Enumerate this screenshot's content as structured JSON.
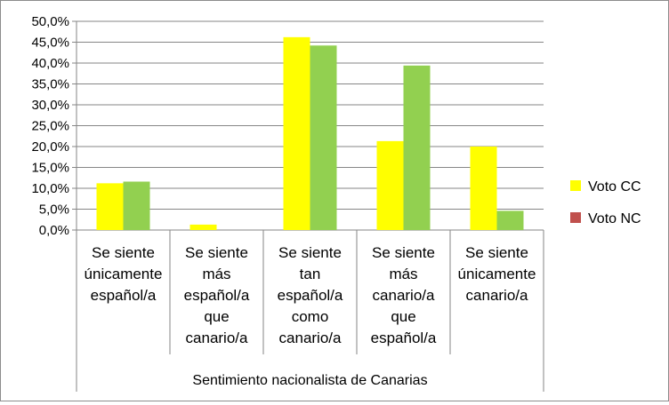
{
  "chart_data": {
    "type": "bar",
    "categories": [
      [
        "Se siente",
        "únicamente",
        "español/a"
      ],
      [
        "Se siente",
        "más",
        "español/a",
        "que",
        "canario/a"
      ],
      [
        "Se siente",
        "tan",
        "español/a",
        "como",
        "canario/a"
      ],
      [
        "Se siente",
        "más",
        "canario/a",
        "que",
        "español/a"
      ],
      [
        "Se siente",
        "únicamente",
        "canario/a"
      ]
    ],
    "series": [
      {
        "name": "Voto CC",
        "color": "#ffff00",
        "values": [
          11.2,
          1.3,
          46.2,
          21.3,
          20.0
        ]
      },
      {
        "name": "Voto NC",
        "color": "#c0504d",
        "values": [
          0,
          0,
          0,
          0,
          0
        ]
      },
      {
        "name": "",
        "color": "#92d050",
        "values": [
          11.6,
          0,
          44.2,
          39.4,
          4.6
        ]
      }
    ],
    "xlabel": "Sentimiento nacionalista de Canarias",
    "ylabel": "",
    "ylim": [
      0,
      50
    ],
    "yticks": [
      "0,0%",
      "5,0%",
      "10,0%",
      "15,0%",
      "20,0%",
      "25,0%",
      "30,0%",
      "35,0%",
      "40,0%",
      "45,0%",
      "50,0%"
    ],
    "grid": true,
    "legend_position": "right"
  }
}
